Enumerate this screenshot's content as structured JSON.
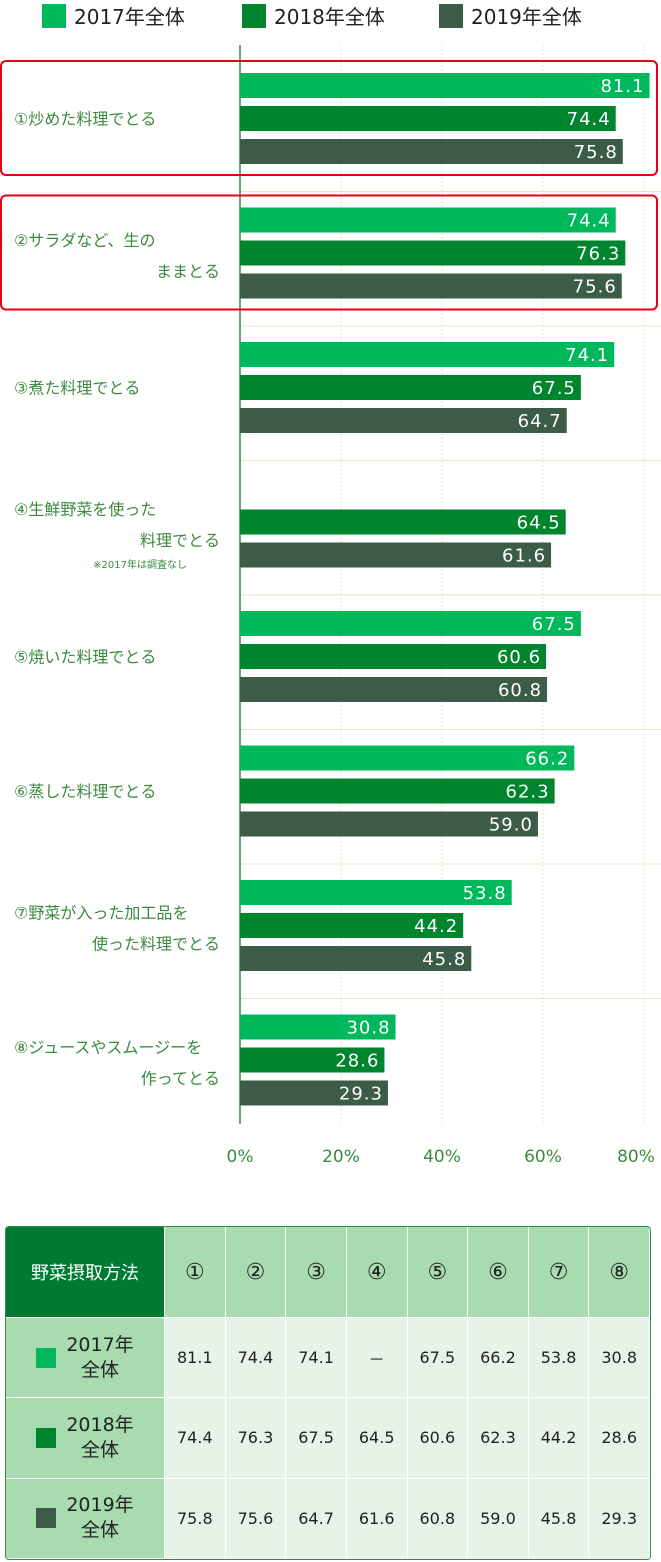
{
  "colors": {
    "s2017": "#00b85c",
    "s2018": "#00852f",
    "s2019": "#3d5c48",
    "label_green": "#3b8a3e",
    "highlight_border": "#e60012",
    "grid": "#e3eac8",
    "axis": "#3b8a3e",
    "table_header": "#007a33",
    "table_row_head": "#a8dcb0",
    "table_cell": "#e6f4e7"
  },
  "chart_data": {
    "type": "bar",
    "orientation": "horizontal",
    "xlim": [
      0,
      80
    ],
    "ticks": [
      "0%",
      "20%",
      "40%",
      "60%",
      "80%"
    ],
    "tick_values": [
      0,
      20,
      40,
      60,
      80
    ],
    "legend_position": "top",
    "series": [
      {
        "name": "2017年全体",
        "color": "#00b85c",
        "values": [
          81.1,
          74.4,
          74.1,
          null,
          67.5,
          66.2,
          53.8,
          30.8
        ]
      },
      {
        "name": "2018年全体",
        "color": "#00852f",
        "values": [
          74.4,
          76.3,
          67.5,
          64.5,
          60.6,
          62.3,
          44.2,
          28.6
        ]
      },
      {
        "name": "2019年全体",
        "color": "#3d5c48",
        "values": [
          75.8,
          75.6,
          64.7,
          61.6,
          60.8,
          59.0,
          45.8,
          29.3
        ]
      }
    ],
    "labels": [
      "75.8",
      "74.4",
      "81.1",
      "75.6",
      "76.3",
      "74.4",
      "64.7",
      "67.5",
      "74.1",
      "61.6",
      "64.5",
      "60.8",
      "60.6",
      "67.5",
      "59.0",
      "62.3",
      "66.2",
      "45.8",
      "44.2",
      "53.8",
      "29.3",
      "28.6",
      "30.8"
    ],
    "categories": [
      {
        "lines": [
          "①炒めた料理でとる"
        ],
        "highlight": true
      },
      {
        "lines": [
          "②サラダなど、生の",
          "ままとる"
        ],
        "highlight": true
      },
      {
        "lines": [
          "③煮た料理でとる"
        ],
        "highlight": false
      },
      {
        "lines": [
          "④生鮮野菜を使った",
          "料理でとる"
        ],
        "note": "※2017年は調査なし",
        "highlight": false
      },
      {
        "lines": [
          "⑤焼いた料理でとる"
        ],
        "highlight": false
      },
      {
        "lines": [
          "⑥蒸した料理でとる"
        ],
        "highlight": false
      },
      {
        "lines": [
          "⑦野菜が入った加工品を",
          "使った料理でとる"
        ],
        "highlight": false
      },
      {
        "lines": [
          "⑧ジュースやスムージーを",
          "作ってとる"
        ],
        "highlight": false
      }
    ]
  },
  "table": {
    "title": "野菜摂取方法",
    "columns": [
      "①",
      "②",
      "③",
      "④",
      "⑤",
      "⑥",
      "⑦",
      "⑧"
    ],
    "rows": [
      {
        "label_line1": "2017年",
        "label_line2": "全体",
        "color": "#00b85c",
        "values": [
          "81.1",
          "74.4",
          "74.1",
          "－",
          "67.5",
          "66.2",
          "53.8",
          "30.8"
        ]
      },
      {
        "label_line1": "2018年",
        "label_line2": "全体",
        "color": "#00852f",
        "values": [
          "74.4",
          "76.3",
          "67.5",
          "64.5",
          "60.6",
          "62.3",
          "44.2",
          "28.6"
        ]
      },
      {
        "label_line1": "2019年",
        "label_line2": "全体",
        "color": "#3d5c48",
        "values": [
          "75.8",
          "75.6",
          "64.7",
          "61.6",
          "60.8",
          "59.0",
          "45.8",
          "29.3"
        ]
      }
    ]
  }
}
